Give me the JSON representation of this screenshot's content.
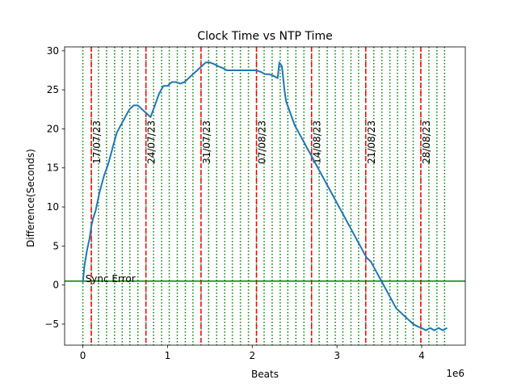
{
  "chart_data": {
    "type": "line",
    "title": "Clock Time vs NTP Time",
    "xlabel": "Beats",
    "ylabel": "Difference(Seconds)",
    "x_offset_text": "1e6",
    "xlim": [
      -0.215,
      4.515
    ],
    "ylim": [
      -7.7,
      30.5
    ],
    "xticks": [
      0,
      1,
      2,
      3,
      4
    ],
    "xtick_labels": [
      "0",
      "1",
      "2",
      "3",
      "4"
    ],
    "yticks": [
      -5,
      0,
      5,
      10,
      15,
      20,
      25,
      30
    ],
    "ytick_labels": [
      "−5",
      "0",
      "5",
      "10",
      "15",
      "20",
      "25",
      "30"
    ],
    "series": [
      {
        "color": "#1f77b4",
        "x": [
          0.0,
          0.02,
          0.05,
          0.08,
          0.1,
          0.12,
          0.15,
          0.2,
          0.25,
          0.3,
          0.35,
          0.4,
          0.45,
          0.5,
          0.55,
          0.6,
          0.65,
          0.7,
          0.75,
          0.8,
          0.85,
          0.9,
          0.95,
          1.0,
          1.05,
          1.1,
          1.15,
          1.2,
          1.25,
          1.3,
          1.35,
          1.4,
          1.45,
          1.5,
          1.55,
          1.6,
          1.65,
          1.7,
          1.75,
          1.8,
          1.85,
          1.9,
          1.95,
          2.0,
          2.05,
          2.1,
          2.15,
          2.2,
          2.25,
          2.3,
          2.32,
          2.35,
          2.38,
          2.4,
          2.45,
          2.5,
          2.55,
          2.6,
          2.65,
          2.7,
          2.75,
          2.8,
          2.85,
          2.9,
          2.95,
          3.0,
          3.05,
          3.1,
          3.15,
          3.2,
          3.25,
          3.3,
          3.35,
          3.4,
          3.45,
          3.5,
          3.55,
          3.6,
          3.65,
          3.7,
          3.75,
          3.8,
          3.85,
          3.9,
          3.95,
          4.0,
          4.05,
          4.1,
          4.15,
          4.2,
          4.25,
          4.3
        ],
        "y": [
          0.3,
          2.5,
          4.5,
          6.0,
          7.5,
          8.5,
          9.5,
          12.0,
          14.0,
          15.5,
          17.5,
          19.5,
          20.5,
          21.5,
          22.5,
          23.0,
          23.0,
          22.5,
          22.0,
          21.5,
          23.0,
          24.5,
          25.5,
          25.5,
          26.0,
          26.0,
          25.8,
          26.0,
          26.5,
          27.0,
          27.5,
          28.0,
          28.5,
          28.5,
          28.3,
          28.0,
          27.8,
          27.5,
          27.5,
          27.5,
          27.5,
          27.5,
          27.5,
          27.5,
          27.5,
          27.3,
          27.0,
          27.0,
          26.8,
          26.5,
          28.5,
          28.0,
          25.0,
          23.5,
          22.0,
          20.5,
          19.5,
          18.5,
          17.5,
          16.5,
          15.5,
          14.5,
          13.5,
          12.5,
          11.5,
          10.5,
          9.5,
          8.5,
          7.5,
          6.5,
          5.5,
          4.5,
          3.5,
          3.0,
          2.0,
          1.0,
          0.0,
          -1.0,
          -2.0,
          -3.0,
          -3.5,
          -4.0,
          -4.5,
          -5.0,
          -5.3,
          -5.5,
          -5.8,
          -5.5,
          -5.8,
          -5.5,
          -5.8,
          -5.5
        ]
      }
    ],
    "hline": {
      "y": 0.5,
      "color": "#008000",
      "label": "Sync Error"
    },
    "date_markers": [
      {
        "x": 0.1,
        "label": "17/07/23"
      },
      {
        "x": 0.745,
        "label": "24/07/23"
      },
      {
        "x": 1.395,
        "label": "31/07/23"
      },
      {
        "x": 2.05,
        "label": "07/08/23"
      },
      {
        "x": 2.7,
        "label": "14/08/23"
      },
      {
        "x": 3.34,
        "label": "21/08/23"
      },
      {
        "x": 3.99,
        "label": "28/08/23"
      }
    ],
    "date_marker_color": "#ff0000",
    "daily_marker_color": "#008000",
    "daily_markers_x": [
      0.0,
      0.1,
      0.185,
      0.28,
      0.375,
      0.465,
      0.555,
      0.65,
      0.745,
      0.835,
      0.93,
      1.02,
      1.115,
      1.21,
      1.3,
      1.395,
      1.485,
      1.58,
      1.675,
      1.765,
      1.86,
      1.955,
      2.05,
      2.14,
      2.235,
      2.33,
      2.42,
      2.515,
      2.61,
      2.7,
      2.79,
      2.885,
      2.98,
      3.07,
      3.165,
      3.255,
      3.34,
      3.435,
      3.53,
      3.625,
      3.715,
      3.81,
      3.9,
      3.99,
      4.085,
      4.18,
      4.27
    ],
    "grid": false
  }
}
